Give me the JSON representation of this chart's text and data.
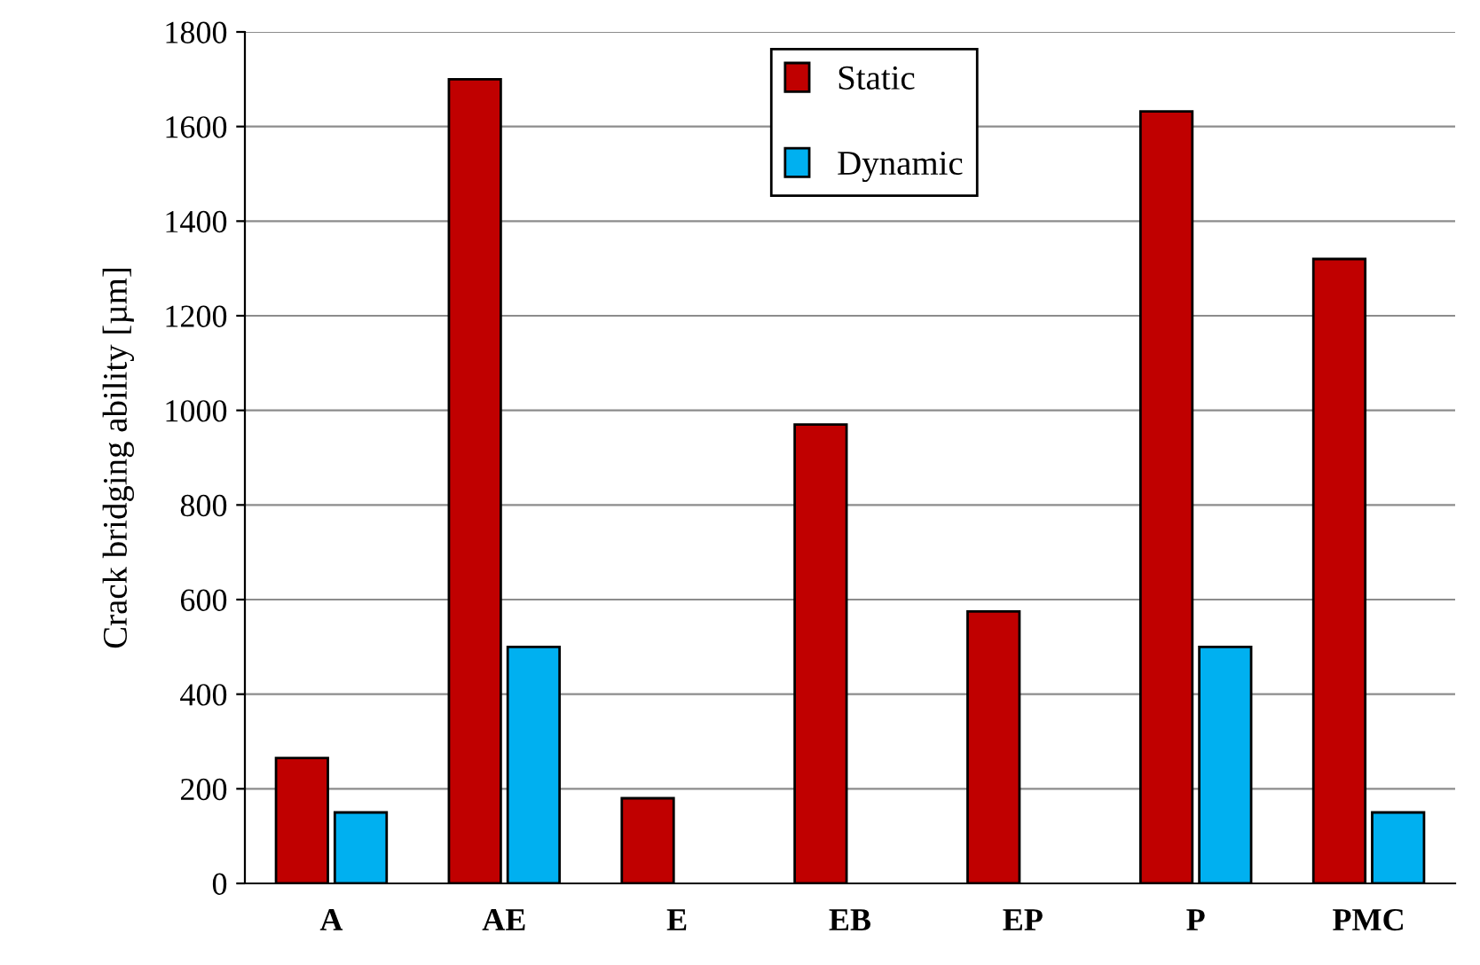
{
  "chart_data": {
    "type": "bar",
    "ylabel": "Crack bridging ability [µm]",
    "categories": [
      "A",
      "AE",
      "E",
      "EB",
      "EP",
      "P",
      "PMC"
    ],
    "series": [
      {
        "name": "Static",
        "color": "#c00000",
        "values": [
          265,
          1700,
          180,
          970,
          575,
          1632,
          1320
        ]
      },
      {
        "name": "Dynamic",
        "color": "#00b0f0",
        "values": [
          150,
          500,
          null,
          null,
          null,
          500,
          150
        ]
      }
    ],
    "ylim": [
      0,
      1800
    ],
    "yticks": [
      0,
      200,
      400,
      600,
      800,
      1000,
      1200,
      1400,
      1600,
      1800
    ],
    "grid": "y",
    "legend": "top"
  }
}
